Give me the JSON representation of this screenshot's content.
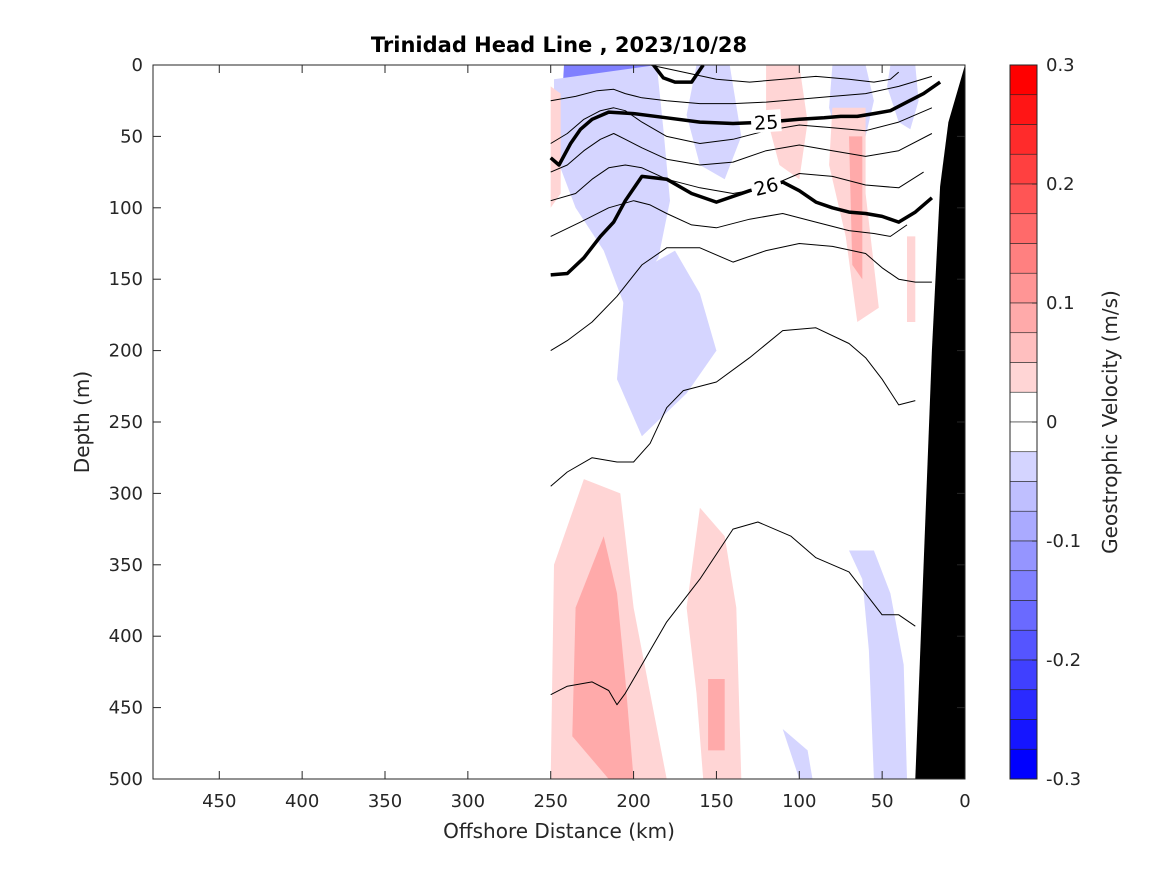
{
  "chart_data": {
    "type": "contour",
    "title": "Trinidad Head Line , 2023/10/28",
    "xlabel": "Offshore Distance (km)",
    "ylabel": "Depth (m)",
    "xlim": [
      490,
      0
    ],
    "ylim": [
      0,
      500
    ],
    "x_reversed": true,
    "y_reversed": true,
    "x_ticks": [
      450,
      400,
      350,
      300,
      250,
      200,
      150,
      100,
      50,
      0
    ],
    "y_ticks": [
      0,
      50,
      100,
      150,
      200,
      250,
      300,
      350,
      400,
      450,
      500
    ],
    "colorbar": {
      "label": "Geostrophic Velocity (m/s)",
      "range": [
        -0.3,
        0.3
      ],
      "levels": 24,
      "ticks": [
        "0.3",
        "0.2",
        "0.1",
        "0",
        "-0.1",
        "-0.2",
        "-0.3"
      ],
      "tick_values": [
        0.3,
        0.2,
        0.1,
        0,
        -0.1,
        -0.2,
        -0.3
      ],
      "negative_color": "#0000ff",
      "positive_color": "#ff0000",
      "zero_color": "#ffffff"
    },
    "velocity_patches": [
      {
        "v": -0.25,
        "pts": [
          [
            237,
            0
          ],
          [
            200,
            0
          ],
          [
            198,
            15
          ],
          [
            205,
            40
          ],
          [
            212,
            65
          ],
          [
            222,
            65
          ],
          [
            232,
            40
          ],
          [
            236,
            15
          ]
        ]
      },
      {
        "v": -0.15,
        "pts": [
          [
            242,
            0
          ],
          [
            190,
            0
          ],
          [
            188,
            25
          ],
          [
            195,
            60
          ],
          [
            202,
            95
          ],
          [
            212,
            115
          ],
          [
            225,
            110
          ],
          [
            238,
            80
          ],
          [
            244,
            40
          ]
        ]
      },
      {
        "v": -0.05,
        "pts": [
          [
            248,
            10
          ],
          [
            186,
            0
          ],
          [
            182,
            45
          ],
          [
            178,
            95
          ],
          [
            185,
            135
          ],
          [
            205,
            170
          ],
          [
            218,
            130
          ],
          [
            235,
            100
          ],
          [
            248,
            60
          ]
        ]
      },
      {
        "v": -0.05,
        "pts": [
          [
            205,
            150
          ],
          [
            175,
            130
          ],
          [
            160,
            160
          ],
          [
            150,
            200
          ],
          [
            168,
            230
          ],
          [
            195,
            260
          ],
          [
            210,
            220
          ]
        ]
      },
      {
        "v": -0.05,
        "pts": [
          [
            162,
            0
          ],
          [
            142,
            0
          ],
          [
            135,
            50
          ],
          [
            145,
            80
          ],
          [
            160,
            70
          ],
          [
            168,
            35
          ]
        ]
      },
      {
        "v": -0.05,
        "pts": [
          [
            80,
            0
          ],
          [
            60,
            0
          ],
          [
            55,
            25
          ],
          [
            60,
            50
          ],
          [
            75,
            60
          ],
          [
            82,
            30
          ]
        ]
      },
      {
        "v": -0.05,
        "pts": [
          [
            45,
            0
          ],
          [
            30,
            0
          ],
          [
            28,
            25
          ],
          [
            33,
            45
          ],
          [
            40,
            40
          ],
          [
            47,
            15
          ]
        ]
      },
      {
        "v": -0.05,
        "pts": [
          [
            70,
            340
          ],
          [
            62,
            360
          ],
          [
            58,
            410
          ],
          [
            55,
            500
          ],
          [
            35,
            500
          ],
          [
            37,
            420
          ],
          [
            45,
            370
          ],
          [
            55,
            340
          ]
        ]
      },
      {
        "v": -0.05,
        "pts": [
          [
            110,
            465
          ],
          [
            100,
            500
          ],
          [
            92,
            500
          ],
          [
            95,
            480
          ]
        ]
      },
      {
        "v": 0.05,
        "pts": [
          [
            250,
            15
          ],
          [
            244,
            20
          ],
          [
            244,
            90
          ],
          [
            250,
            100
          ]
        ]
      },
      {
        "v": 0.05,
        "pts": [
          [
            230,
            290
          ],
          [
            248,
            350
          ],
          [
            250,
            500
          ],
          [
            180,
            500
          ],
          [
            190,
            440
          ],
          [
            200,
            380
          ],
          [
            208,
            300
          ]
        ]
      },
      {
        "v": 0.05,
        "pts": [
          [
            160,
            310
          ],
          [
            145,
            330
          ],
          [
            138,
            380
          ],
          [
            135,
            500
          ],
          [
            158,
            500
          ],
          [
            162,
            440
          ],
          [
            168,
            380
          ]
        ]
      },
      {
        "v": 0.05,
        "pts": [
          [
            120,
            0
          ],
          [
            100,
            0
          ],
          [
            95,
            40
          ],
          [
            100,
            80
          ],
          [
            112,
            70
          ],
          [
            120,
            35
          ]
        ]
      },
      {
        "v": 0.05,
        "pts": [
          [
            80,
            30
          ],
          [
            60,
            30
          ],
          [
            60,
            90
          ],
          [
            52,
            170
          ],
          [
            65,
            180
          ],
          [
            72,
            120
          ],
          [
            82,
            70
          ]
        ]
      },
      {
        "v": 0.05,
        "pts": [
          [
            35,
            120
          ],
          [
            30,
            120
          ],
          [
            30,
            180
          ],
          [
            35,
            180
          ]
        ]
      },
      {
        "v": 0.1,
        "pts": [
          [
            218,
            330
          ],
          [
            235,
            380
          ],
          [
            237,
            470
          ],
          [
            215,
            500
          ],
          [
            200,
            500
          ],
          [
            205,
            430
          ],
          [
            210,
            370
          ]
        ]
      },
      {
        "v": 0.1,
        "pts": [
          [
            155,
            430
          ],
          [
            145,
            430
          ],
          [
            145,
            480
          ],
          [
            155,
            480
          ]
        ]
      },
      {
        "v": 0.1,
        "pts": [
          [
            70,
            50
          ],
          [
            62,
            50
          ],
          [
            62,
            150
          ],
          [
            68,
            140
          ]
        ]
      }
    ],
    "density_contours": [
      {
        "label": "25",
        "bold": true,
        "x": [
          250,
          245,
          238,
          232,
          225,
          215,
          200,
          180,
          160,
          140,
          120,
          100,
          85,
          75,
          65,
          55,
          45,
          35,
          25,
          15
        ],
        "y": [
          65,
          70,
          55,
          45,
          38,
          33,
          34,
          37,
          40,
          41,
          40,
          38,
          37,
          36,
          36,
          34,
          32,
          26,
          20,
          12
        ]
      },
      {
        "label": "26",
        "bold": true,
        "x": [
          250,
          240,
          230,
          220,
          212,
          205,
          195,
          180,
          165,
          150,
          130,
          120,
          110,
          100,
          90,
          80,
          70,
          60,
          50,
          40,
          30,
          20
        ],
        "y": [
          147,
          146,
          135,
          120,
          110,
          95,
          78,
          80,
          90,
          96,
          88,
          85,
          82,
          88,
          96,
          100,
          103,
          104,
          106,
          110,
          103,
          93
        ]
      },
      {
        "label": "",
        "bold": true,
        "x": [
          188,
          182,
          175,
          165,
          158
        ],
        "y": [
          0,
          9,
          12,
          12,
          0
        ]
      },
      {
        "label": "",
        "bold": false,
        "x": [
          250,
          235,
          222,
          212,
          205,
          195,
          180,
          160,
          140,
          120,
          100,
          80,
          60,
          40,
          20
        ],
        "y": [
          25,
          22,
          18,
          17,
          20,
          23,
          25,
          27,
          27,
          26,
          24,
          22,
          20,
          15,
          8
        ]
      },
      {
        "label": "",
        "bold": false,
        "x": [
          250,
          240,
          230,
          220,
          212,
          205,
          195,
          180,
          160,
          140,
          120,
          100,
          80,
          60,
          40,
          20
        ],
        "y": [
          55,
          48,
          38,
          32,
          30,
          32,
          40,
          50,
          55,
          52,
          46,
          42,
          44,
          46,
          40,
          30
        ]
      },
      {
        "label": "",
        "bold": false,
        "x": [
          250,
          240,
          230,
          220,
          212,
          205,
          195,
          180,
          160,
          140,
          120,
          100,
          80,
          60,
          40,
          20
        ],
        "y": [
          75,
          70,
          60,
          52,
          48,
          52,
          58,
          66,
          70,
          68,
          60,
          56,
          60,
          64,
          60,
          48
        ]
      },
      {
        "label": "",
        "bold": false,
        "x": [
          250,
          235,
          225,
          215,
          205,
          195,
          180,
          160,
          140,
          120,
          100,
          80,
          60,
          40,
          25
        ],
        "y": [
          95,
          90,
          80,
          72,
          70,
          72,
          80,
          86,
          90,
          86,
          76,
          78,
          84,
          86,
          75
        ]
      },
      {
        "label": "",
        "bold": false,
        "x": [
          250,
          232,
          215,
          200,
          190,
          180,
          165,
          150,
          130,
          110,
          90,
          70,
          55,
          45,
          35
        ],
        "y": [
          120,
          110,
          100,
          95,
          98,
          104,
          112,
          114,
          108,
          104,
          110,
          116,
          118,
          120,
          112
        ]
      },
      {
        "label": "",
        "bold": false,
        "x": [
          250,
          240,
          225,
          210,
          195,
          180,
          160,
          140,
          120,
          100,
          80,
          60,
          50,
          40,
          30,
          20
        ],
        "y": [
          200,
          193,
          180,
          162,
          140,
          128,
          128,
          138,
          130,
          125,
          127,
          132,
          142,
          150,
          152,
          152
        ]
      },
      {
        "label": "",
        "bold": false,
        "x": [
          250,
          240,
          225,
          210,
          200,
          190,
          180,
          170,
          150,
          130,
          110,
          90,
          70,
          60,
          50,
          40,
          30
        ],
        "y": [
          295,
          285,
          275,
          278,
          278,
          265,
          240,
          228,
          222,
          205,
          186,
          184,
          195,
          205,
          220,
          238,
          235
        ]
      },
      {
        "label": "",
        "bold": false,
        "x": [
          250,
          240,
          225,
          215,
          210,
          205,
          200,
          190,
          180,
          160,
          140,
          125,
          105,
          90,
          70,
          60,
          50,
          40,
          30
        ],
        "y": [
          441,
          435,
          432,
          438,
          448,
          440,
          430,
          410,
          390,
          360,
          325,
          320,
          330,
          345,
          355,
          370,
          385,
          385,
          393
        ]
      },
      {
        "label": "",
        "bold": false,
        "x": [
          190,
          170,
          150,
          130,
          110,
          90,
          70,
          55,
          45,
          40
        ],
        "y": [
          0,
          5,
          10,
          12,
          10,
          8,
          10,
          12,
          10,
          5
        ]
      }
    ],
    "bathymetry": {
      "x": [
        0,
        30,
        25,
        20,
        15,
        10,
        0
      ],
      "y": [
        500,
        500,
        350,
        200,
        85,
        40,
        0
      ]
    }
  }
}
